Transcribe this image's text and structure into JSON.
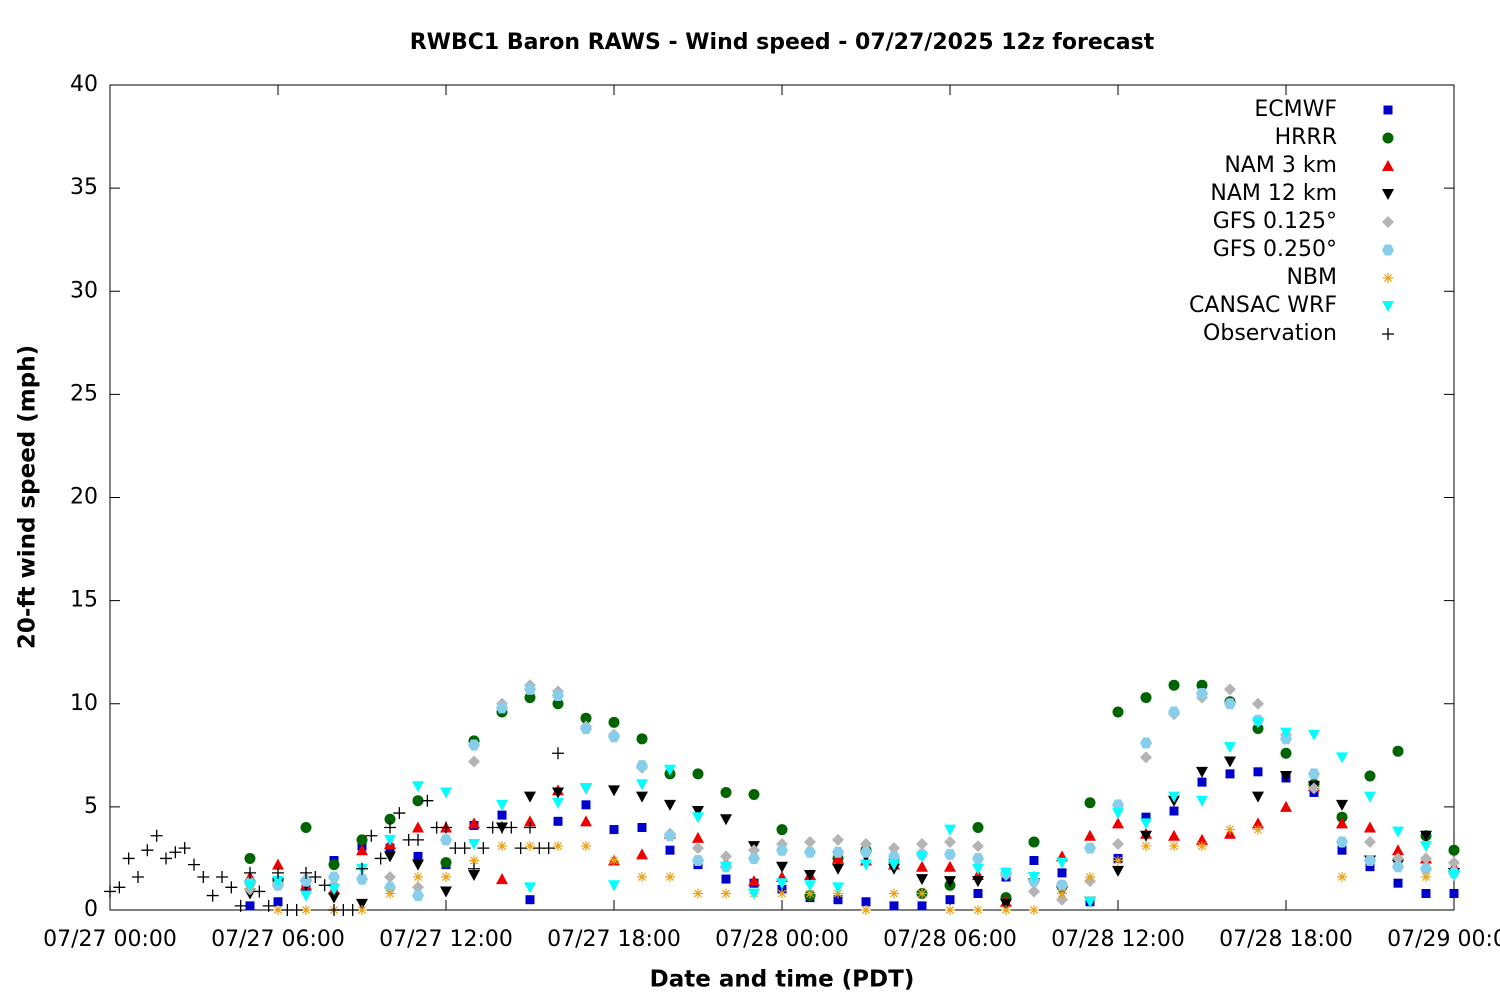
{
  "chart_data": {
    "type": "scatter",
    "title": "RWBC1 Baron RAWS - Wind speed - 07/27/2025 12z forecast",
    "xlabel": "Date and time (PDT)",
    "ylabel": "20-ft wind speed (mph)",
    "xlim": [
      "07/27 00:00",
      "07/29 00:00"
    ],
    "xticks": [
      "07/27 00:00",
      "07/27 06:00",
      "07/27 12:00",
      "07/27 18:00",
      "07/28 00:00",
      "07/28 06:00",
      "07/28 12:00",
      "07/28 18:00",
      "07/29 00:00"
    ],
    "ylim": [
      0,
      40
    ],
    "yticks": [
      0,
      5,
      10,
      15,
      20,
      25,
      30,
      35,
      40
    ],
    "legend": "top-right",
    "x": [
      "07/27 05:00",
      "07/27 06:00",
      "07/27 07:00",
      "07/27 08:00",
      "07/27 09:00",
      "07/27 10:00",
      "07/27 11:00",
      "07/27 12:00",
      "07/27 13:00",
      "07/27 14:00",
      "07/27 15:00",
      "07/27 16:00",
      "07/27 17:00",
      "07/27 18:00",
      "07/27 19:00",
      "07/27 20:00",
      "07/27 21:00",
      "07/27 22:00",
      "07/27 23:00",
      "07/28 00:00",
      "07/28 01:00",
      "07/28 02:00",
      "07/28 03:00",
      "07/28 04:00",
      "07/28 05:00",
      "07/28 06:00",
      "07/28 07:00",
      "07/28 08:00",
      "07/28 09:00",
      "07/28 10:00",
      "07/28 11:00",
      "07/28 12:00",
      "07/28 13:00",
      "07/28 14:00",
      "07/28 15:00",
      "07/28 16:00",
      "07/28 17:00",
      "07/28 18:00",
      "07/28 19:00",
      "07/28 20:00",
      "07/28 21:00",
      "07/28 22:00",
      "07/28 23:00",
      "07/29 00:00"
    ],
    "series": [
      {
        "name": "ECMWF",
        "color": "#0000cc",
        "marker": "square",
        "values": [
          0.2,
          0.4,
          1.0,
          2.4,
          3.1,
          3.0,
          2.6,
          2.2,
          4.1,
          4.6,
          0.5,
          4.3,
          5.1,
          3.9,
          4.0,
          2.9,
          2.2,
          1.5,
          1.3,
          1.0,
          0.6,
          0.5,
          0.4,
          0.2,
          0.2,
          0.5,
          0.8,
          1.6,
          2.4,
          1.8,
          0.4,
          2.5,
          4.5,
          4.8,
          6.2,
          6.6,
          6.7,
          6.4,
          5.7,
          2.9,
          2.1,
          1.3,
          0.8,
          0.8
        ]
      },
      {
        "name": "HRRR",
        "color": "#006400",
        "marker": "circle",
        "values": [
          2.5,
          1.4,
          4.0,
          2.2,
          3.4,
          4.4,
          5.3,
          2.3,
          8.2,
          9.6,
          10.3,
          10.0,
          9.3,
          9.1,
          8.3,
          6.6,
          6.6,
          5.7,
          5.6,
          3.9,
          0.7,
          2.5,
          2.9,
          2.4,
          0.8,
          1.2,
          4.0,
          0.6,
          3.3,
          1.2,
          5.2,
          9.6,
          10.3,
          10.9,
          10.9,
          10.1,
          8.8,
          7.6,
          6.1,
          4.5,
          6.5,
          7.7,
          3.6,
          2.9
        ]
      },
      {
        "name": "NAM 3 km",
        "color": "#ee0000",
        "marker": "triangle-up",
        "values": [
          1.6,
          2.2,
          1.2,
          1.0,
          2.9,
          3.2,
          4.0,
          4.0,
          4.2,
          1.5,
          4.3,
          5.8,
          4.3,
          2.4,
          2.7,
          3.7,
          3.5,
          2.3,
          1.4,
          1.6,
          1.7,
          2.5,
          2.4,
          2.2,
          2.1,
          2.1,
          1.7,
          0.4,
          1.6,
          2.6,
          3.6,
          4.2,
          3.7,
          3.6,
          3.4,
          3.7,
          4.2,
          5.0,
          6.0,
          4.2,
          4.0,
          2.9,
          2.5,
          2.1
        ]
      },
      {
        "name": "NAM 12 km",
        "color": "#000000",
        "marker": "triangle-down",
        "values": [
          0.8,
          1.3,
          1.2,
          0.6,
          0.3,
          2.6,
          2.2,
          0.9,
          1.7,
          4.0,
          5.5,
          5.7,
          5.9,
          5.8,
          5.5,
          5.1,
          4.8,
          4.4,
          3.1,
          2.1,
          1.7,
          2.0,
          2.6,
          2.0,
          1.5,
          1.4,
          1.4,
          0.3,
          1.3,
          0.9,
          0.4,
          1.9,
          3.6,
          5.3,
          6.7,
          7.2,
          5.5,
          6.5,
          6.0,
          5.1,
          2.4,
          2.2,
          3.6,
          1.8
        ]
      },
      {
        "name": "GFS 0.125°",
        "color": "#b4b4b4",
        "marker": "diamond",
        "values": [
          1.0,
          1.3,
          1.5,
          1.2,
          1.5,
          1.6,
          1.1,
          3.4,
          7.2,
          10.0,
          10.9,
          10.6,
          8.9,
          8.5,
          6.9,
          3.7,
          3.0,
          2.6,
          2.9,
          3.2,
          3.3,
          3.4,
          3.2,
          3.0,
          3.2,
          3.3,
          3.1,
          1.7,
          0.9,
          0.5,
          1.4,
          3.2,
          7.4,
          9.5,
          10.3,
          10.7,
          10.0,
          8.5,
          5.9,
          3.3,
          3.3,
          2.5,
          2.5,
          2.3
        ]
      },
      {
        "name": "GFS 0.250°",
        "color": "#87ceeb",
        "marker": "hexagon",
        "values": [
          1.3,
          1.2,
          1.4,
          1.6,
          1.5,
          1.1,
          0.7,
          3.4,
          8.0,
          9.8,
          10.7,
          10.4,
          8.8,
          8.4,
          7.0,
          3.6,
          2.4,
          2.1,
          2.5,
          2.9,
          2.8,
          2.8,
          2.8,
          2.6,
          2.7,
          2.7,
          2.5,
          1.8,
          1.4,
          1.2,
          3.0,
          5.1,
          8.1,
          9.6,
          10.5,
          10.0,
          9.2,
          8.3,
          6.6,
          3.3,
          2.4,
          2.1,
          2.0,
          1.8
        ]
      },
      {
        "name": "NBM",
        "color": "#e8a317",
        "marker": "asterisk",
        "values": [
          1.2,
          0,
          0,
          0,
          0,
          0.8,
          1.6,
          1.6,
          2.4,
          3.1,
          3.1,
          3.1,
          3.1,
          2.4,
          1.6,
          1.6,
          0.8,
          0.8,
          0.8,
          0.8,
          0.8,
          0.8,
          0,
          0.8,
          0.8,
          0,
          0,
          0,
          0,
          0.8,
          1.6,
          2.4,
          3.1,
          3.1,
          3.1,
          3.9,
          3.9,
          null,
          null,
          1.6,
          null,
          null,
          1.6,
          null
        ]
      },
      {
        "name": "CANSAC WRF",
        "color": "#00ffff",
        "marker": "triangle-down",
        "values": [
          1.2,
          1.4,
          0.7,
          1.0,
          2.0,
          3.4,
          6.0,
          5.7,
          3.2,
          5.1,
          1.1,
          5.2,
          5.9,
          1.2,
          6.1,
          6.8,
          4.5,
          2.1,
          0.8,
          1.3,
          1.2,
          1.1,
          2.2,
          2.2,
          2.6,
          3.9,
          2.0,
          1.8,
          1.6,
          2.3,
          0.4,
          4.7,
          4.2,
          5.5,
          5.3,
          7.9,
          9.1,
          8.6,
          8.5,
          7.4,
          5.5,
          3.8,
          3.1,
          1.7
        ]
      },
      {
        "name": "Observation",
        "color": "#000000",
        "marker": "plus",
        "x": [
          "07/27 00:00",
          "07/27 00:20",
          "07/27 00:40",
          "07/27 01:00",
          "07/27 01:20",
          "07/27 01:40",
          "07/27 02:00",
          "07/27 02:20",
          "07/27 02:40",
          "07/27 03:00",
          "07/27 03:20",
          "07/27 03:40",
          "07/27 04:00",
          "07/27 04:20",
          "07/27 04:40",
          "07/27 05:00",
          "07/27 05:20",
          "07/27 05:40",
          "07/27 06:00",
          "07/27 06:20",
          "07/27 06:40",
          "07/27 07:00",
          "07/27 07:20",
          "07/27 07:40",
          "07/27 08:00",
          "07/27 08:20",
          "07/27 08:40",
          "07/27 09:00",
          "07/27 09:20",
          "07/27 09:40",
          "07/27 10:00",
          "07/27 10:20",
          "07/27 10:40",
          "07/27 11:00",
          "07/27 11:20",
          "07/27 11:40",
          "07/27 12:00",
          "07/27 12:20",
          "07/27 12:40",
          "07/27 13:00",
          "07/27 13:20",
          "07/27 13:40",
          "07/27 14:00",
          "07/27 14:20",
          "07/27 14:40",
          "07/27 15:00",
          "07/27 15:20",
          "07/27 15:40",
          "07/27 16:00"
        ],
        "values": [
          0.9,
          1.1,
          2.5,
          1.6,
          2.9,
          3.6,
          2.5,
          2.8,
          3.0,
          2.2,
          1.6,
          0.7,
          1.6,
          1.1,
          0.2,
          1.8,
          0.9,
          0.2,
          1.8,
          0.0,
          0.0,
          1.8,
          1.6,
          1.2,
          0.0,
          0.0,
          0.0,
          2.0,
          3.6,
          2.5,
          4.0,
          4.7,
          3.4,
          3.4,
          5.3,
          4.0,
          4.0,
          3.0,
          3.0,
          2.0,
          3.0,
          4.0,
          4.0,
          4.0,
          3.0,
          4.0,
          3.0,
          3.0,
          7.6
        ]
      }
    ]
  }
}
